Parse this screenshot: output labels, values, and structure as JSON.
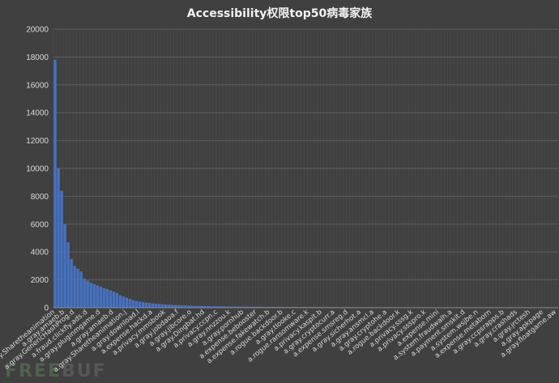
{
  "chart_data": {
    "type": "bar",
    "title": "Accessibility权限top50病毒家族",
    "xlabel": "",
    "ylabel": "",
    "ylim": [
      0,
      20000
    ],
    "ytick_values": [
      0,
      2000,
      4000,
      6000,
      8000,
      10000,
      12000,
      14000,
      16000,
      18000,
      20000
    ],
    "ytick_labels": [
      "0",
      "2000",
      "4000",
      "6000",
      "8000",
      "10000",
      "12000",
      "14000",
      "16000",
      "18000",
      "20000"
    ],
    "grid": true,
    "legend": "none",
    "bar_color": "#4472c4",
    "num_bars": 155,
    "values": [
      17800,
      10000,
      8400,
      6000,
      4700,
      3500,
      3000,
      2800,
      2600,
      2100,
      1950,
      1800,
      1700,
      1600,
      1500,
      1400,
      1350,
      1250,
      1150,
      1050,
      900,
      800,
      720,
      620,
      540,
      480,
      430,
      400,
      370,
      340,
      310,
      290,
      270,
      250,
      230,
      215,
      200,
      190,
      180,
      170,
      160,
      152,
      145,
      138,
      132,
      126,
      120,
      115,
      110,
      106,
      102,
      98,
      95,
      92,
      89,
      86,
      84,
      82,
      80,
      78,
      76,
      74,
      72,
      70,
      68,
      66,
      65,
      64,
      63,
      62,
      61,
      60,
      59,
      58,
      57,
      56,
      55,
      54,
      53,
      52,
      51,
      50,
      49,
      48,
      47,
      46,
      45,
      44,
      43,
      42,
      41,
      40,
      39,
      38,
      37,
      36,
      35,
      35,
      34,
      34,
      33,
      33,
      32,
      32,
      31,
      31,
      30,
      30,
      29,
      29,
      28,
      28,
      27,
      27,
      26,
      26,
      25,
      25,
      24,
      24,
      23,
      23,
      22,
      22,
      21,
      21,
      20,
      20,
      19,
      19,
      18,
      18,
      17,
      17,
      16,
      16,
      15,
      15,
      14,
      14,
      13,
      13,
      12,
      12,
      11,
      11,
      10,
      10,
      9,
      9,
      8,
      8,
      7,
      7,
      6
    ],
    "x_labels": [
      {
        "index": 0,
        "label": "a.gray.Sharetheanimation"
      },
      {
        "index": 3,
        "label": "a.gray.amaeb.b"
      },
      {
        "index": 6,
        "label": "a.gray.GenericHashProg.d"
      },
      {
        "index": 10,
        "label": "a.fraud.clickfly.ads.d"
      },
      {
        "index": 14,
        "label": "a.gray.pluginmgame.d"
      },
      {
        "index": 18,
        "label": "a.gray.amaeb.d"
      },
      {
        "index": 22,
        "label": "a.gray.Sharetheanimation.j"
      },
      {
        "index": 26,
        "label": "a.gray.download.l"
      },
      {
        "index": 30,
        "label": "a.expense.hackd.a"
      },
      {
        "index": 34,
        "label": "a.privacy.mmsbook"
      },
      {
        "index": 38,
        "label": "a.gray.jobdaoa.f"
      },
      {
        "index": 42,
        "label": "a.gray.jibcore.o"
      },
      {
        "index": 46,
        "label": "a.gray.Dingbat.hd"
      },
      {
        "index": 50,
        "label": "a.privacy.ccpn.c"
      },
      {
        "index": 54,
        "label": "a.gray.nnzzou.k"
      },
      {
        "index": 58,
        "label": "a.gray.pornhub"
      },
      {
        "index": 62,
        "label": "a.expense.bebooster"
      },
      {
        "index": 66,
        "label": "a.expense.fakewatch.b"
      },
      {
        "index": 70,
        "label": "a.rogue.backdoor.b"
      },
      {
        "index": 74,
        "label": "a.gray.tlooke.c"
      },
      {
        "index": 78,
        "label": "a.rogue.ransomware.k"
      },
      {
        "index": 82,
        "label": "a.privacy.kaspit.b"
      },
      {
        "index": 86,
        "label": "a.gray.cryptocurr.a"
      },
      {
        "index": 90,
        "label": "a.expense.smsreg.d"
      },
      {
        "index": 94,
        "label": "a.gray.sicherhot.a"
      },
      {
        "index": 98,
        "label": "a.gray.ansmcl.a"
      },
      {
        "index": 102,
        "label": "a.gray.cryptohe.a"
      },
      {
        "index": 106,
        "label": "a.rogue.backdoor.k"
      },
      {
        "index": 110,
        "label": "a.privacy.sssg.k"
      },
      {
        "index": 114,
        "label": "a.privacy.ssspro.k"
      },
      {
        "index": 118,
        "label": "a.expense.mini"
      },
      {
        "index": 122,
        "label": "a.system.fraudwalh.a"
      },
      {
        "index": 126,
        "label": "a.payment.smskit.d"
      },
      {
        "index": 130,
        "label": "a.system.wsjbe.n"
      },
      {
        "index": 134,
        "label": "a.expense.metaborn"
      },
      {
        "index": 138,
        "label": "a.gray.ccpsrapps.b"
      },
      {
        "index": 142,
        "label": "a.gray.crashads"
      },
      {
        "index": 146,
        "label": "a.gray.jrctesh"
      },
      {
        "index": 150,
        "label": "a.gray.apkpage"
      },
      {
        "index": 154,
        "label": "a.gray.floatgame.aw"
      }
    ]
  },
  "watermark": {
    "prefix": "FREE",
    "suffix": "BUF"
  }
}
